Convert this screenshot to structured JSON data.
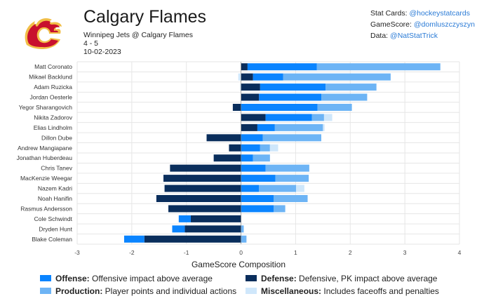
{
  "header": {
    "team": "Calgary Flames",
    "matchup": "Winnipeg Jets @ Calgary Flames",
    "score": "4 - 5",
    "date": "10-02-2023"
  },
  "credits": [
    {
      "label": "Stat Cards:",
      "handle": "@hockeystatcards"
    },
    {
      "label": "GameScore:",
      "handle": "@domluszczyszyn"
    },
    {
      "label": "Data:",
      "handle": "@NatStatTrick"
    }
  ],
  "legend": [
    {
      "name": "Offense:",
      "desc": "Offensive impact above average",
      "color": "#0a84ff"
    },
    {
      "name": "Defense:",
      "desc": "Defensive, PK impact above average",
      "color": "#0a2e5c"
    },
    {
      "name": "Production:",
      "desc": "Player points and individual actions",
      "color": "#6db4f5"
    },
    {
      "name": "Miscellaneous:",
      "desc": "Includes faceoffs and penalties",
      "color": "#cfe7fb"
    }
  ],
  "colors": {
    "offense": "#0a84ff",
    "defense": "#0a2e5c",
    "production": "#6db4f5",
    "misc": "#cfe7fb",
    "logo_red": "#c8102e",
    "logo_gold": "#f1be48"
  },
  "chart_data": {
    "type": "bar",
    "orientation": "horizontal",
    "stacked": true,
    "xlabel": "GameScore Composition",
    "xlim": [
      -3,
      4
    ],
    "xticks": [
      -3,
      -2,
      -1,
      0,
      1,
      2,
      3,
      4
    ],
    "categories": [
      "Matt Coronato",
      "Mikael Backlund",
      "Adam Ruzicka",
      "Jordan Oesterle",
      "Yegor Sharangovich",
      "Nikita Zadorov",
      "Elias Lindholm",
      "Dillon Dube",
      "Andrew Mangiapane",
      "Jonathan Huberdeau",
      "Chris Tanev",
      "MacKenzie Weegar",
      "Nazem Kadri",
      "Noah Hanifin",
      "Rasmus Andersson",
      "Cole Schwindt",
      "Dryden Hunt",
      "Blake Coleman"
    ],
    "series": [
      {
        "name": "Defense",
        "values": [
          0.12,
          0.22,
          0.35,
          0.33,
          -0.15,
          0.45,
          0.3,
          -0.63,
          -0.22,
          -0.5,
          -1.3,
          -1.42,
          -1.4,
          -1.55,
          -1.33,
          -0.92,
          -1.03,
          -1.77
        ]
      },
      {
        "name": "Offense",
        "values": [
          1.27,
          0.55,
          1.2,
          1.14,
          1.4,
          0.85,
          0.32,
          0.4,
          0.35,
          0.22,
          0.45,
          0.63,
          0.33,
          0.6,
          0.6,
          -0.22,
          -0.23,
          -0.37
        ]
      },
      {
        "name": "Production",
        "values": [
          2.26,
          1.97,
          0.93,
          0.84,
          0.63,
          0.22,
          0.88,
          1.07,
          0.18,
          0.31,
          0.8,
          0.61,
          0.68,
          0.62,
          0.21,
          0.0,
          0.05,
          0.1
        ]
      },
      {
        "name": "Miscellaneous",
        "values": [
          0.0,
          -0.05,
          -0.02,
          0.0,
          0.0,
          0.15,
          0.03,
          0.0,
          0.15,
          0.0,
          0.0,
          0.0,
          0.15,
          0.0,
          0.0,
          0.0,
          0.0,
          0.0
        ]
      }
    ]
  }
}
